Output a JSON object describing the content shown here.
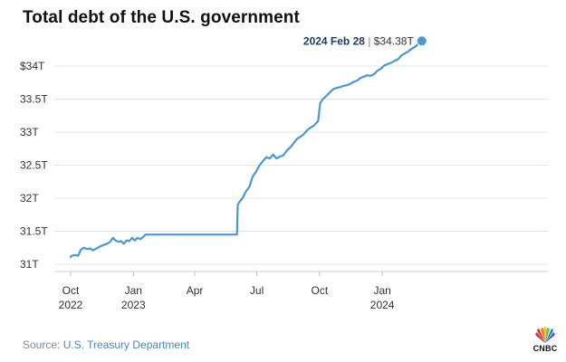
{
  "chart_data": {
    "type": "line",
    "title": "Total debt of the U.S. government",
    "xlabel": "",
    "ylabel": "",
    "x_ticks": [
      {
        "date": "2022-10-01",
        "line1": "Oct",
        "line2": "2022"
      },
      {
        "date": "2023-01-01",
        "line1": "Jan",
        "line2": "2023"
      },
      {
        "date": "2023-04-01",
        "line1": "Apr",
        "line2": ""
      },
      {
        "date": "2023-07-01",
        "line1": "Jul",
        "line2": ""
      },
      {
        "date": "2023-10-01",
        "line1": "Oct",
        "line2": ""
      },
      {
        "date": "2024-01-01",
        "line1": "Jan",
        "line2": "2024"
      }
    ],
    "y_ticks": [
      {
        "value": 31.0,
        "label": "31T"
      },
      {
        "value": 31.5,
        "label": "31.5T"
      },
      {
        "value": 32.0,
        "label": "32T"
      },
      {
        "value": 32.5,
        "label": "32.5T"
      },
      {
        "value": 33.0,
        "label": "33T"
      },
      {
        "value": 33.5,
        "label": "33.5T"
      },
      {
        "value": 34.0,
        "label": "$34T"
      }
    ],
    "xlim": [
      "2022-10-01",
      "2024-03-01"
    ],
    "ylim": [
      30.9,
      34.55
    ],
    "grid": "horizontal",
    "line_color": "#4a97d2",
    "series": [
      {
        "values": [
          [
            "2022-10-01",
            31.11
          ],
          [
            "2022-10-03",
            31.13
          ],
          [
            "2022-10-07",
            31.14
          ],
          [
            "2022-10-12",
            31.13
          ],
          [
            "2022-10-16",
            31.22
          ],
          [
            "2022-10-20",
            31.25
          ],
          [
            "2022-10-25",
            31.23
          ],
          [
            "2022-10-30",
            31.24
          ],
          [
            "2022-11-03",
            31.21
          ],
          [
            "2022-11-08",
            31.24
          ],
          [
            "2022-11-13",
            31.27
          ],
          [
            "2022-11-18",
            31.29
          ],
          [
            "2022-11-23",
            31.31
          ],
          [
            "2022-11-28",
            31.34
          ],
          [
            "2022-12-02",
            31.4
          ],
          [
            "2022-12-06",
            31.36
          ],
          [
            "2022-12-10",
            31.34
          ],
          [
            "2022-12-14",
            31.35
          ],
          [
            "2022-12-18",
            31.31
          ],
          [
            "2022-12-22",
            31.36
          ],
          [
            "2022-12-26",
            31.35
          ],
          [
            "2022-12-30",
            31.4
          ],
          [
            "2023-01-03",
            31.36
          ],
          [
            "2023-01-07",
            31.4
          ],
          [
            "2023-01-11",
            31.38
          ],
          [
            "2023-01-15",
            31.41
          ],
          [
            "2023-01-19",
            31.45
          ],
          [
            "2023-01-25",
            31.45
          ],
          [
            "2023-02-15",
            31.45
          ],
          [
            "2023-03-15",
            31.45
          ],
          [
            "2023-04-15",
            31.45
          ],
          [
            "2023-05-15",
            31.45
          ],
          [
            "2023-06-02",
            31.45
          ],
          [
            "2023-06-03",
            31.9
          ],
          [
            "2023-06-06",
            31.95
          ],
          [
            "2023-06-10",
            32.0
          ],
          [
            "2023-06-15",
            32.1
          ],
          [
            "2023-06-20",
            32.17
          ],
          [
            "2023-06-25",
            32.33
          ],
          [
            "2023-06-30",
            32.4
          ],
          [
            "2023-07-05",
            32.5
          ],
          [
            "2023-07-10",
            32.56
          ],
          [
            "2023-07-15",
            32.62
          ],
          [
            "2023-07-20",
            32.6
          ],
          [
            "2023-07-25",
            32.66
          ],
          [
            "2023-07-30",
            32.6
          ],
          [
            "2023-08-04",
            32.63
          ],
          [
            "2023-08-09",
            32.65
          ],
          [
            "2023-08-14",
            32.72
          ],
          [
            "2023-08-19",
            32.77
          ],
          [
            "2023-08-24",
            32.83
          ],
          [
            "2023-08-29",
            32.9
          ],
          [
            "2023-09-03",
            32.93
          ],
          [
            "2023-09-08",
            32.97
          ],
          [
            "2023-09-13",
            33.03
          ],
          [
            "2023-09-18",
            33.07
          ],
          [
            "2023-09-23",
            33.1
          ],
          [
            "2023-09-29",
            33.17
          ],
          [
            "2023-10-02",
            33.44
          ],
          [
            "2023-10-06",
            33.5
          ],
          [
            "2023-10-11",
            33.55
          ],
          [
            "2023-10-16",
            33.6
          ],
          [
            "2023-10-21",
            33.65
          ],
          [
            "2023-10-26",
            33.67
          ],
          [
            "2023-10-31",
            33.68
          ],
          [
            "2023-11-05",
            33.7
          ],
          [
            "2023-11-10",
            33.71
          ],
          [
            "2023-11-15",
            33.73
          ],
          [
            "2023-11-20",
            33.76
          ],
          [
            "2023-11-25",
            33.78
          ],
          [
            "2023-11-30",
            33.82
          ],
          [
            "2023-12-05",
            33.84
          ],
          [
            "2023-12-10",
            33.86
          ],
          [
            "2023-12-15",
            33.85
          ],
          [
            "2023-12-20",
            33.88
          ],
          [
            "2023-12-25",
            33.93
          ],
          [
            "2023-12-30",
            33.96
          ],
          [
            "2024-01-04",
            34.01
          ],
          [
            "2024-01-09",
            34.03
          ],
          [
            "2024-01-14",
            34.05
          ],
          [
            "2024-01-19",
            34.08
          ],
          [
            "2024-01-24",
            34.1
          ],
          [
            "2024-01-29",
            34.16
          ],
          [
            "2024-02-03",
            34.19
          ],
          [
            "2024-02-08",
            34.22
          ],
          [
            "2024-02-13",
            34.26
          ],
          [
            "2024-02-18",
            34.29
          ],
          [
            "2024-02-23",
            34.34
          ],
          [
            "2024-02-28",
            34.38
          ]
        ]
      }
    ],
    "annotation": {
      "date": "2024-02-28",
      "value": 34.38,
      "date_label": "2024 Feb 28",
      "separator": "|",
      "value_label": "$34.38T"
    }
  },
  "source": {
    "label": "Source:",
    "value": "U.S. Treasury Department"
  },
  "logo": {
    "name": "cnbc-peacock-icon",
    "text": "CNBC"
  }
}
